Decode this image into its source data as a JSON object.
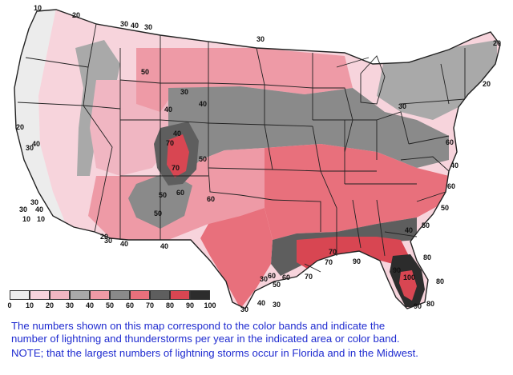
{
  "colors": {
    "band_0_10": "#ececec",
    "band_10_20": "#f7d4dc",
    "band_20_30": "#f0b6c2",
    "band_30_40": "#a9a9a9",
    "band_40_50": "#ee9aa6",
    "band_50_60": "#8a8a8a",
    "band_60_70": "#e8707c",
    "band_70_80": "#5e5e5e",
    "band_80_90": "#d84652",
    "band_90_100": "#2c2c2c",
    "caption_text": "#1f2bd0",
    "border_lines": "#222222"
  },
  "legend": {
    "tick_labels": [
      "0",
      "10",
      "20",
      "30",
      "40",
      "50",
      "60",
      "70",
      "80",
      "90",
      "100"
    ]
  },
  "contour_labels": [
    "10",
    "20",
    "30",
    "40",
    "30",
    "30",
    "20",
    "20",
    "30",
    "20",
    "30",
    "40",
    "50",
    "40",
    "30",
    "40",
    "40",
    "50",
    "60",
    "70",
    "70",
    "50",
    "30",
    "40",
    "10",
    "10",
    "20",
    "30",
    "40",
    "40",
    "30",
    "50",
    "60",
    "40",
    "60",
    "50",
    "50",
    "40",
    "30",
    "40",
    "50",
    "60",
    "70",
    "70",
    "80",
    "90",
    "100",
    "80",
    "80",
    "90",
    "70",
    "90",
    "30",
    "60",
    "60",
    "30"
  ],
  "caption": {
    "line1": "The numbers shown on this map correspond to the color bands and indicate the",
    "line2": "number of lightning and thunderstorms per year in the indicated area or color band.",
    "note": "NOTE; that the largest numbers of lightning storms occur in Florida and in the Midwest."
  }
}
